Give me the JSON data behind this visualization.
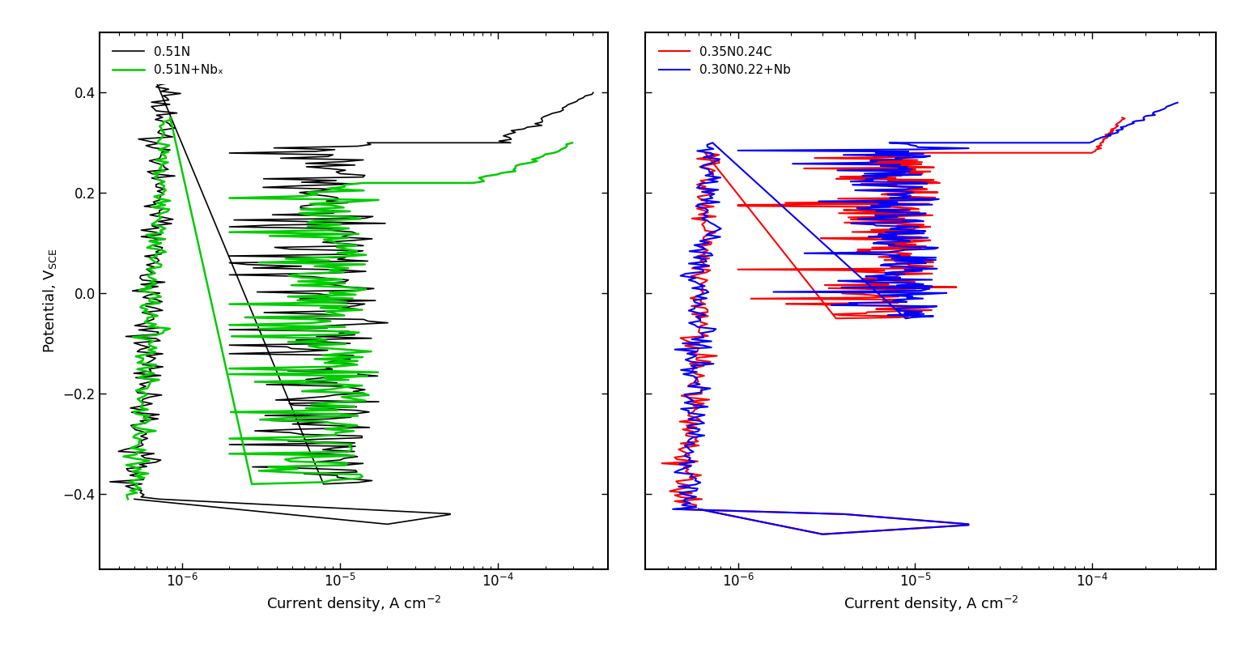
{
  "left_panel": {
    "legend_labels": [
      "0.51N",
      "0.51N+Nbₓ"
    ],
    "legend_colors": [
      "#000000",
      "#00cc00"
    ],
    "xlabel": "Current density, A cm$^{-2}$",
    "ylabel": "Potential, V$_{\\mathrm{SCE}}$",
    "xlim": [
      3e-07,
      0.0005
    ],
    "ylim": [
      -0.55,
      0.52
    ]
  },
  "right_panel": {
    "legend_labels": [
      "0.35N0.24C",
      "0.30N0.22+Nb"
    ],
    "legend_colors": [
      "#ff0000",
      "#0000ff"
    ],
    "xlabel": "Current density, A cm$^{-2}$",
    "xlim": [
      3e-07,
      0.0005
    ],
    "ylim": [
      -0.55,
      0.52
    ]
  },
  "yticks": [
    -0.4,
    -0.2,
    0.0,
    0.2,
    0.4
  ],
  "background_color": "#ffffff",
  "axis_linewidth": 1.5,
  "tick_labelsize": 12,
  "legend_fontsize": 11
}
